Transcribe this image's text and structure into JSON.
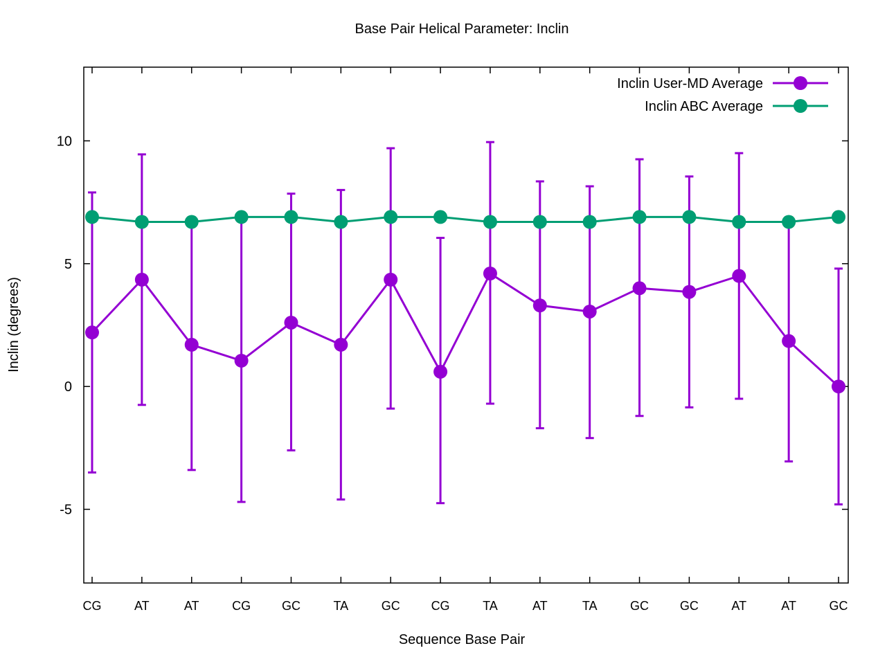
{
  "chart_data": {
    "type": "line",
    "title": "Base Pair Helical Parameter: Inclin",
    "xlabel": "Sequence Base Pair",
    "ylabel": "Inclin (degrees)",
    "ylim": [
      -8,
      13
    ],
    "yticks": [
      -5,
      0,
      5,
      10
    ],
    "ytick_labels": [
      "-5",
      "0",
      "5",
      "10"
    ],
    "categories": [
      "CG",
      "AT",
      "AT",
      "CG",
      "GC",
      "TA",
      "GC",
      "CG",
      "TA",
      "AT",
      "TA",
      "GC",
      "GC",
      "AT",
      "AT",
      "GC"
    ],
    "grid": false,
    "legend_position": "top-right",
    "series": [
      {
        "name": "Inclin User-MD Average",
        "color": "#9400d3",
        "values": [
          2.2,
          4.35,
          1.7,
          1.05,
          2.6,
          1.7,
          4.35,
          0.6,
          4.6,
          3.3,
          3.05,
          4.0,
          3.85,
          4.5,
          1.85,
          0.0
        ],
        "error_low": [
          -3.5,
          -0.75,
          -3.4,
          -4.7,
          -2.6,
          -4.6,
          -0.9,
          -4.75,
          -0.7,
          -1.7,
          -2.1,
          -1.2,
          -0.85,
          -0.5,
          -3.05,
          -4.8
        ],
        "error_high": [
          7.9,
          9.45,
          6.7,
          6.9,
          7.85,
          8.0,
          9.7,
          6.05,
          9.95,
          8.35,
          8.15,
          9.25,
          8.55,
          9.5,
          6.7,
          4.8
        ]
      },
      {
        "name": "Inclin ABC Average",
        "color": "#009e73",
        "values": [
          6.9,
          6.7,
          6.7,
          6.9,
          6.9,
          6.7,
          6.9,
          6.9,
          6.7,
          6.7,
          6.7,
          6.9,
          6.9,
          6.7,
          6.7,
          6.9
        ]
      }
    ]
  }
}
